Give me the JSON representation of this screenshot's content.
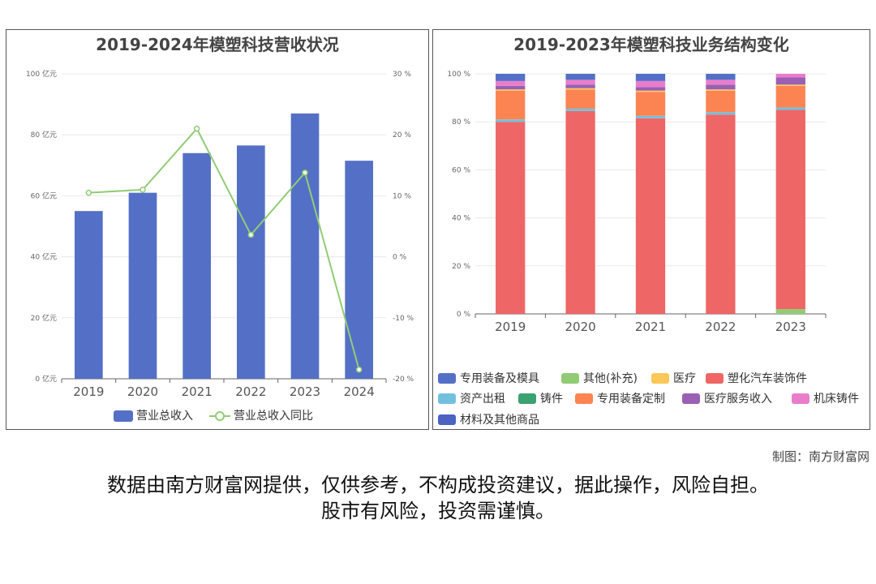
{
  "credit": "制图：南方财富网",
  "disclaimer_line1": "数据由南方财富网提供，仅供参考，不构成投资建议，据此操作，风险自担。",
  "disclaimer_line2": "股市有风险，投资需谨慎。",
  "chart_data": [
    {
      "type": "bar",
      "title": "2019-2024年模塑科技营收状况",
      "categories": [
        "2019",
        "2020",
        "2021",
        "2022",
        "2023",
        "2024"
      ],
      "series": [
        {
          "name": "营业总收入",
          "type": "bar",
          "axis": "left",
          "color": "#5470c6",
          "values": [
            55,
            61,
            74,
            76.5,
            87,
            71.5
          ]
        },
        {
          "name": "营业总收入同比",
          "type": "line",
          "axis": "right",
          "color": "#91cc75",
          "values": [
            10.5,
            11.0,
            21.0,
            3.6,
            13.8,
            -18.5
          ]
        }
      ],
      "y_left": {
        "ylim": [
          0,
          100
        ],
        "ticks": [
          0,
          20,
          40,
          60,
          80,
          100
        ],
        "tick_labels": [
          "0 亿元",
          "20 亿元",
          "40 亿元",
          "60 亿元",
          "80 亿元",
          "100 亿元"
        ]
      },
      "y_right": {
        "ylim": [
          -20,
          30
        ],
        "ticks": [
          -20,
          -10,
          0,
          10,
          20,
          30
        ],
        "tick_labels": [
          "-20 %",
          "-10 %",
          "0 %",
          "10 %",
          "20 %",
          "30 %"
        ]
      },
      "grid": true,
      "legend": "bottom"
    },
    {
      "type": "bar",
      "stacked": true,
      "title": "2019-2023年模塑科技业务结构变化",
      "categories": [
        "2019",
        "2020",
        "2021",
        "2022",
        "2023"
      ],
      "ylim": [
        0,
        100
      ],
      "ticks": [
        0,
        20,
        40,
        60,
        80,
        100
      ],
      "tick_labels": [
        "0 %",
        "20 %",
        "40 %",
        "60 %",
        "80 %",
        "100 %"
      ],
      "series": [
        {
          "name": "其他(补充)",
          "color": "#91cc75",
          "values": [
            0,
            0,
            0,
            0,
            2
          ]
        },
        {
          "name": "塑化汽车装饰件",
          "color": "#ee6666",
          "values": [
            80,
            84.5,
            81.5,
            83,
            83
          ]
        },
        {
          "name": "资产出租",
          "color": "#73c0de",
          "values": [
            1,
            1,
            1,
            1,
            1
          ]
        },
        {
          "name": "专用装备定制",
          "color": "#fc8452",
          "values": [
            12,
            8,
            10,
            9,
            9
          ]
        },
        {
          "name": "医疗",
          "color": "#fac858",
          "values": [
            0.5,
            0.5,
            0.5,
            0.5,
            0.5
          ]
        },
        {
          "name": "医疗服务收入",
          "color": "#9a60b4",
          "values": [
            1.5,
            1.5,
            1.5,
            2,
            3
          ]
        },
        {
          "name": "机床铸件",
          "color": "#ea7ccc",
          "values": [
            2,
            2,
            2.5,
            2,
            1.5
          ]
        },
        {
          "name": "铸件",
          "color": "#3ba272",
          "values": [
            0,
            0,
            0,
            0,
            0
          ]
        },
        {
          "name": "专用装备及模具",
          "color": "#5470c6",
          "values": [
            3,
            2.5,
            3,
            2.5,
            0
          ]
        },
        {
          "name": "材料及其他商品",
          "color": "#4c63c2",
          "values": [
            0,
            0,
            0,
            0,
            0
          ]
        }
      ],
      "legend_order": [
        "专用装备及模具",
        "其他(补充)",
        "医疗",
        "塑化汽车装饰件",
        "资产出租",
        "铸件",
        "专用装备定制",
        "医疗服务收入",
        "机床铸件",
        "材料及其他商品"
      ],
      "grid": true,
      "legend": "bottom"
    }
  ]
}
